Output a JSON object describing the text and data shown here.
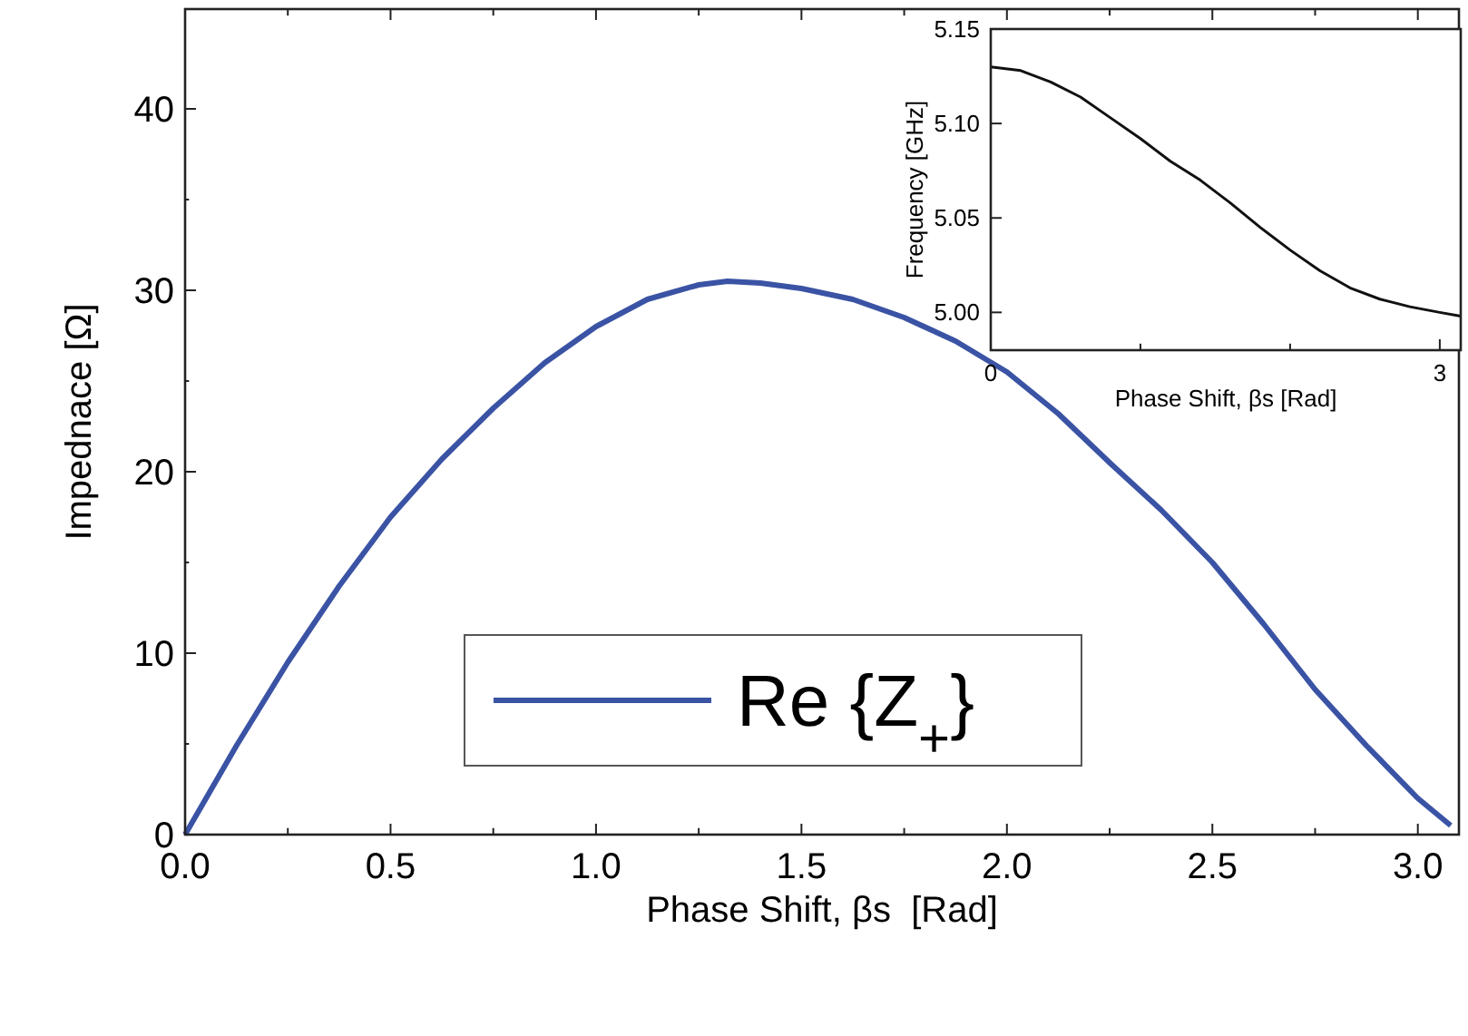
{
  "chart_data": [
    {
      "type": "line",
      "xlabel": "Phase Shift, βs  [Rad]",
      "ylabel": "Impednace [Ω]",
      "xlim": [
        0,
        3.1
      ],
      "ylim": [
        0,
        45.5
      ],
      "xticks": [
        {
          "value": 0,
          "label": "0.0"
        },
        {
          "value": 0.25,
          "label": null
        },
        0.5,
        {
          "value": 0.75,
          "label": null
        },
        {
          "value": 1,
          "label": "1.0"
        },
        {
          "value": 1.25,
          "label": null
        },
        1.5,
        {
          "value": 1.75,
          "label": null
        },
        {
          "value": 2,
          "label": "2.0"
        },
        {
          "value": 2.25,
          "label": null
        },
        2.5,
        {
          "value": 2.75,
          "label": null
        },
        {
          "value": 3,
          "label": "3.0"
        }
      ],
      "yticks": [
        0,
        {
          "value": 5,
          "label": null
        },
        10,
        {
          "value": 15,
          "label": null
        },
        20,
        {
          "value": 25,
          "label": null
        },
        30,
        {
          "value": 35,
          "label": null
        },
        40
      ],
      "legend": "bottom",
      "grid": false,
      "series": [
        {
          "name": "Re {Z$_{+}$}",
          "color": "#3a53a4",
          "x": [
            0,
            0.125,
            0.25,
            0.375,
            0.5,
            0.625,
            0.75,
            0.875,
            1.0,
            1.125,
            1.25,
            1.32,
            1.4,
            1.5,
            1.625,
            1.75,
            1.875,
            2.0,
            2.125,
            2.25,
            2.375,
            2.5,
            2.625,
            2.75,
            2.875,
            3.0,
            3.08
          ],
          "values": [
            0,
            4.9,
            9.5,
            13.7,
            17.5,
            20.7,
            23.5,
            26,
            28,
            29.5,
            30.3,
            30.5,
            30.4,
            30.1,
            29.5,
            28.5,
            27.2,
            25.5,
            23.2,
            20.5,
            17.9,
            15,
            11.6,
            8,
            4.9,
            2,
            0.5
          ]
        }
      ]
    },
    {
      "type": "line",
      "xlabel": "Phase Shift, βs [Rad]",
      "ylabel": "Frequency [GHz]",
      "xlim": [
        0,
        3.14
      ],
      "ylim": [
        4.98,
        5.15
      ],
      "xticks": [
        0,
        {
          "value": 1,
          "label": null
        },
        {
          "value": 2,
          "label": null
        },
        3
      ],
      "yticks": [
        {
          "value": 5,
          "label": "5.00"
        },
        5.05,
        {
          "value": 5.1,
          "label": "5.10"
        },
        5.15
      ],
      "grid": false,
      "series": [
        {
          "color": "#111111",
          "x": [
            0,
            0.2,
            0.4,
            0.6,
            0.8,
            1.0,
            1.2,
            1.4,
            1.6,
            1.8,
            2.0,
            2.2,
            2.4,
            2.6,
            2.8,
            3.0,
            3.14
          ],
          "values": [
            5.13,
            5.128,
            5.122,
            5.114,
            5.103,
            5.092,
            5.08,
            5.07,
            5.058,
            5.045,
            5.033,
            5.022,
            5.013,
            5.007,
            5.003,
            5.0,
            4.998
          ]
        }
      ]
    }
  ]
}
